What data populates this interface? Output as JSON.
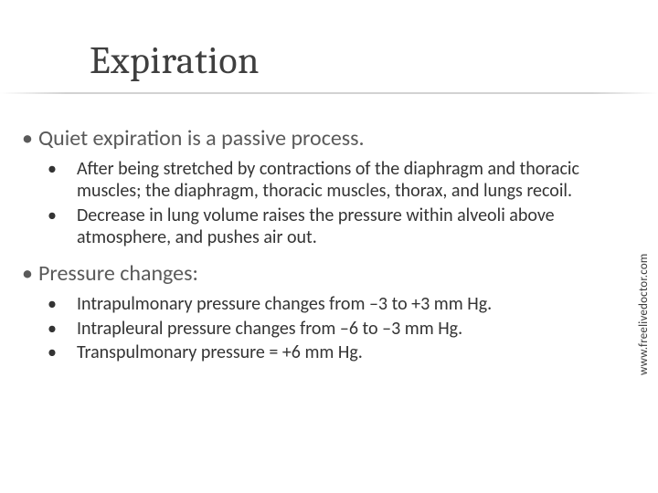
{
  "slide": {
    "title": "Expiration",
    "bullets": [
      {
        "text": "Quiet expiration is a passive process.",
        "children": [
          {
            "text": "After being stretched by contractions of the diaphragm and thoracic muscles; the diaphragm, thoracic muscles, thorax, and lungs recoil."
          },
          {
            "text": "Decrease in lung volume raises the pressure within alveoli above atmosphere, and pushes air out."
          }
        ]
      },
      {
        "text": "Pressure changes:",
        "children": [
          {
            "text": "Intrapulmonary pressure changes from  –3 to +3 mm Hg."
          },
          {
            "text": "Intrapleural pressure changes from –6 to –3 mm Hg."
          },
          {
            "text": "Transpulmonary pressure = +6 mm Hg."
          }
        ]
      }
    ],
    "watermark": "www.freelivedoctor.com"
  },
  "style": {
    "background_color": "#ffffff",
    "title_color": "#3f3f3f",
    "title_font_family": "Cambria",
    "title_fontsize_pt": 32,
    "level1_color": "#5a5a5a",
    "level1_fontsize_pt": 18,
    "level2_color": "#343434",
    "level2_fontsize_pt": 15,
    "underline_color": "#b4b4b4",
    "watermark_color": "#3a3a3a",
    "watermark_fontsize_pt": 10
  }
}
